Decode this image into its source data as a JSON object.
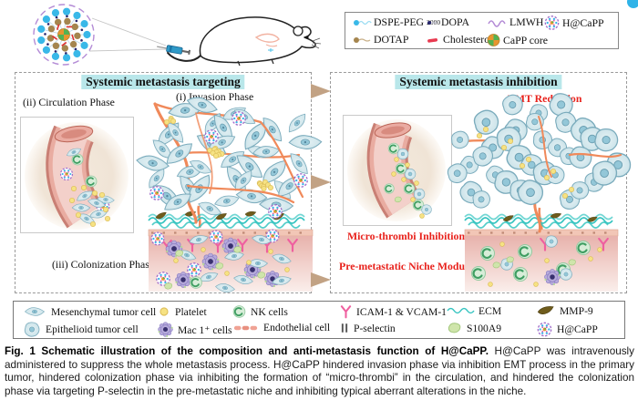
{
  "top_legend": {
    "items": [
      {
        "label": "DSPE-PEG",
        "sub": "2000",
        "icon": "dspe-peg-icon"
      },
      {
        "label": "DOPA",
        "icon": "dopa-icon"
      },
      {
        "label": "LMWH",
        "icon": "lmwh-icon"
      },
      {
        "label": "H@CaPP",
        "icon": "hcapp-icon"
      },
      {
        "label": "DOTAP",
        "icon": "dotap-icon"
      },
      {
        "label": "Cholesterol",
        "icon": "cholesterol-icon"
      },
      {
        "label": "CaPP core",
        "icon": "capp-core-icon"
      }
    ]
  },
  "left_panel": {
    "title": "Systemic metastasis targeting",
    "phases": {
      "circulation": "(ii) Circulation Phase",
      "invasion": "(i) Invasion Phase",
      "colonization": "(iii) Colonization Phase"
    }
  },
  "right_panel": {
    "title": "Systemic metastasis inhibition",
    "labels": {
      "emt": "EMT Reduction",
      "microthrombi": "Micro-thrombi Inhibition",
      "niche": "Pre-metastatic Niche Modulation"
    }
  },
  "bottom_legend": {
    "items": [
      {
        "label": "Mesenchymal tumor cell",
        "icon": "mesenchymal-tumor-cell-icon"
      },
      {
        "label": "Platelet",
        "icon": "platelet-icon"
      },
      {
        "label": "NK cells",
        "icon": "nk-cell-icon"
      },
      {
        "label": "ICAM-1 & VCAM-1",
        "icon": "icam-vcam-icon"
      },
      {
        "label": "ECM",
        "icon": "ecm-icon"
      },
      {
        "label": "MMP-9",
        "icon": "mmp9-icon"
      },
      {
        "label": "Epithelioid tumor cell",
        "icon": "epithelioid-tumor-cell-icon"
      },
      {
        "label": "Mac 1⁺ cells",
        "icon": "mac1-cell-icon"
      },
      {
        "label": "Endothelial cell",
        "icon": "endothelial-cell-icon"
      },
      {
        "label": "P-selectin",
        "icon": "p-selectin-icon"
      },
      {
        "label": "S100A9",
        "icon": "s100a9-icon"
      },
      {
        "label": "H@CaPP",
        "icon": "hcapp-icon"
      }
    ]
  },
  "caption": {
    "bold": "Fig. 1 Schematic illustration of the composition and anti-metastasis function of H@CaPP.",
    "rest": "H@CaPP was intravenously administered to suppress the whole metastasis process. H@CaPP hindered invasion phase via inhibition EMT process in the primary tumor, hindered colonization phase via inhibiting the formation of “micro-thrombi” in the circulation, and hindered the colonization phase via targeting P-selectin in the pre-metastatic niche and inhibiting typical aberrant alterations in the niche."
  },
  "colors": {
    "title_highlight": "#b9e7ea",
    "red_label": "#e8221c",
    "arrow": "#c2a284",
    "ecm_teal": "#35c4c0",
    "vessel_orange": "#f0895a",
    "hcapp_purple": "#a06cc8",
    "platelet_yellow": "#f6e283"
  }
}
